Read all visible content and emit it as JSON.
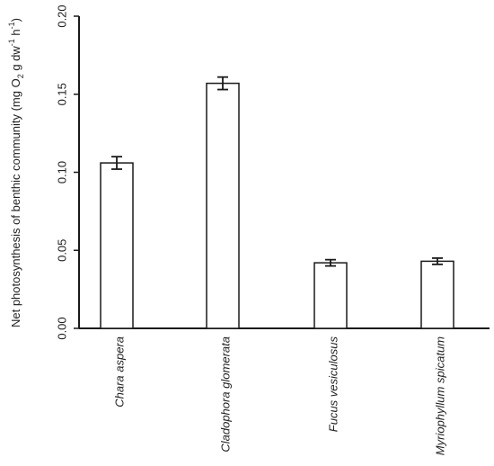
{
  "chart_data": {
    "type": "bar",
    "categories": [
      "Chara aspera",
      "Cladophora glomerata",
      "Fucus vesiculosus",
      "Myriophyllum spicatum"
    ],
    "values": [
      0.106,
      0.157,
      0.042,
      0.043
    ],
    "errors": [
      0.004,
      0.004,
      0.002,
      0.002
    ],
    "ylim": [
      0,
      0.2
    ],
    "yticks": [
      "0.00",
      "0.05",
      "0.10",
      "0.15",
      "0.20"
    ],
    "ytick_values": [
      0,
      0.05,
      0.1,
      0.15,
      0.2
    ],
    "ylabel": {
      "main": "Net photosynthesis of benthic community (mg O",
      "sub": "2",
      "mid": " g dw",
      "sup1": "-1",
      "mid2": " h",
      "sup2": "-1",
      "end": ")"
    },
    "grid": false,
    "colors": {
      "bar_fill": "#ffffff",
      "stroke": "#1a1a1a"
    }
  }
}
